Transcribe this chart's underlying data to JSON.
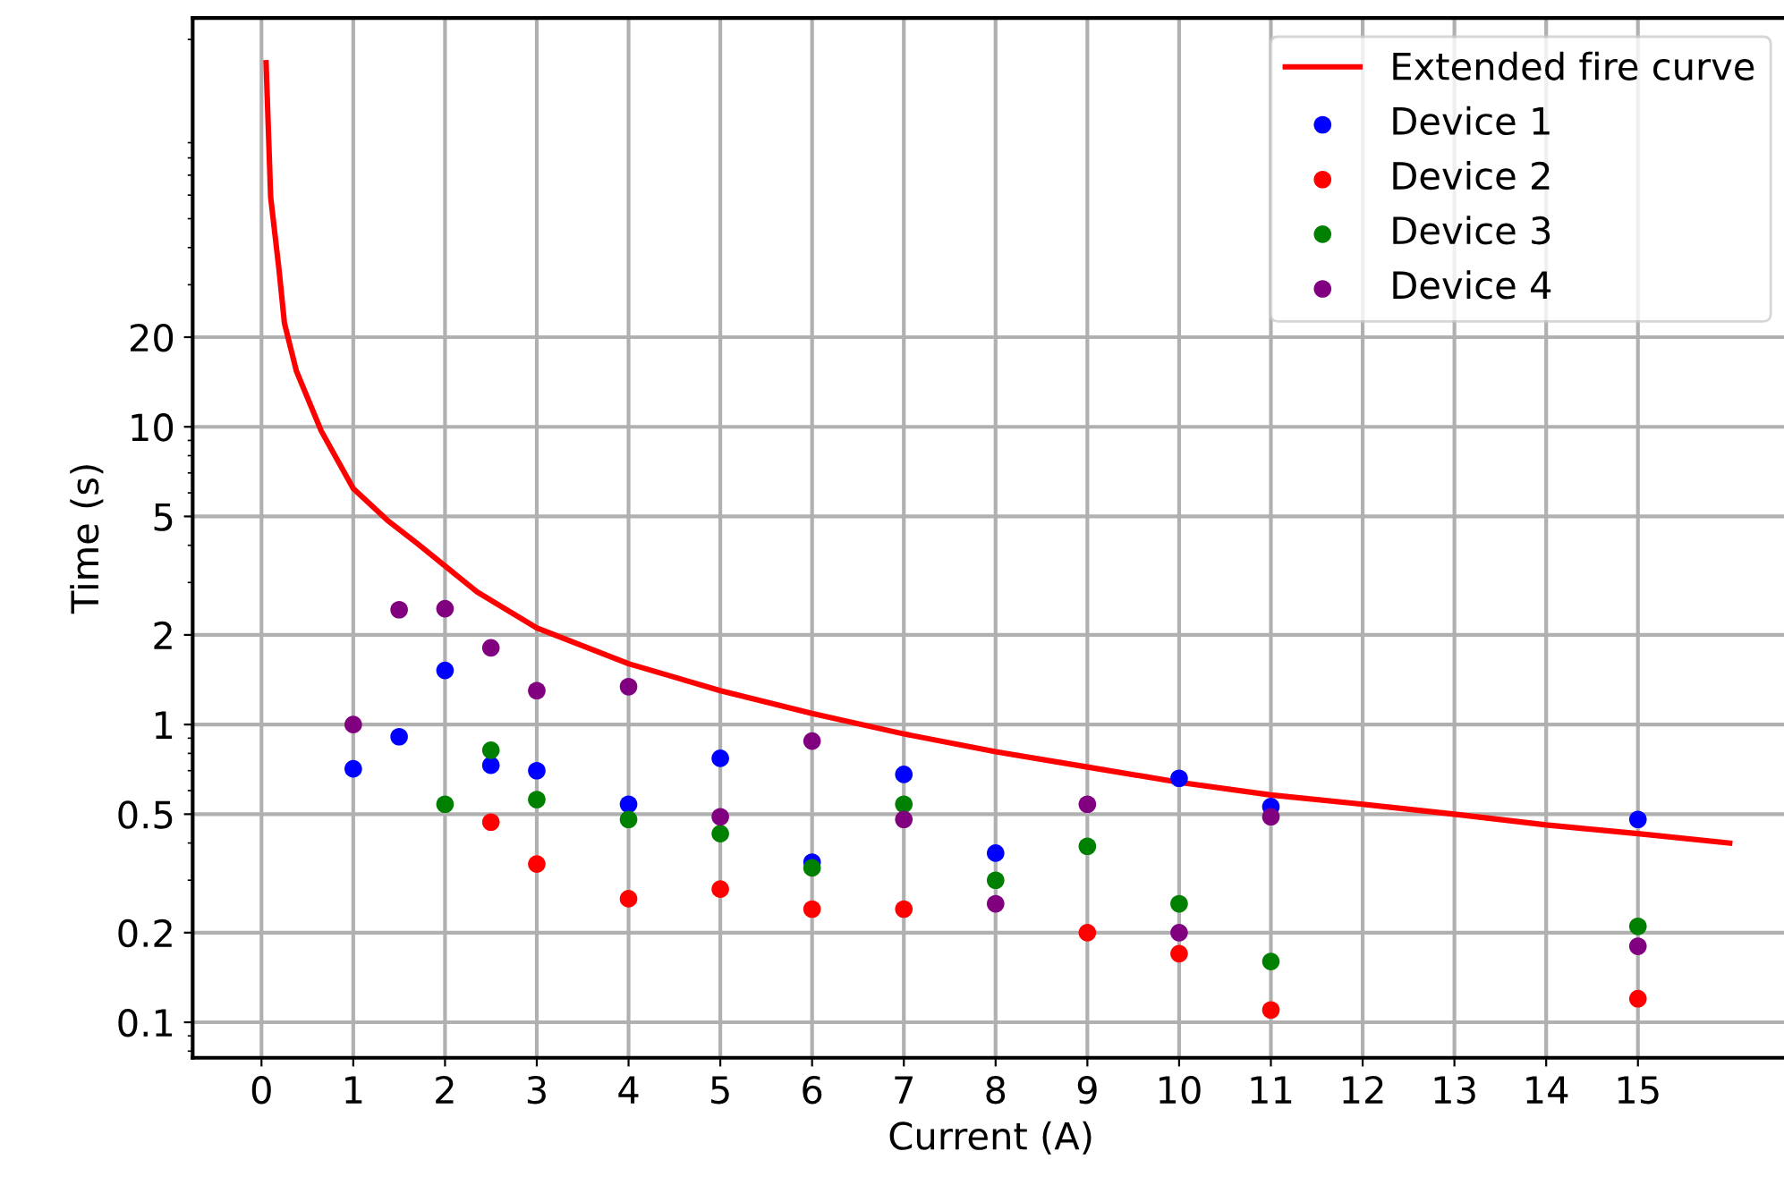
{
  "chart_data": {
    "type": "scatter",
    "xlabel": "Current (A)",
    "ylabel": "Time (s)",
    "log": "y",
    "xlim": [
      -0.75,
      16.65
    ],
    "xticks": [
      0,
      1,
      2,
      3,
      4,
      5,
      6,
      7,
      8,
      9,
      10,
      11,
      12,
      13,
      14,
      15
    ],
    "ylim": [
      0.076,
      236
    ],
    "yticks": [
      0.1,
      0.2,
      0.5,
      1,
      2,
      5,
      10,
      20
    ],
    "grid": true,
    "legend": "top right",
    "series": [
      {
        "name": "Extended fire curve",
        "type": "line",
        "color": "#ff0000",
        "marker": "none",
        "line_style": "solid",
        "x": [
          0.05,
          0.1,
          0.19,
          0.25,
          0.38,
          0.65,
          1,
          1.37,
          1.7,
          2.35,
          3,
          4,
          5,
          6,
          7,
          8,
          9,
          10,
          11,
          12,
          13,
          14,
          15,
          16
        ],
        "values": [
          167,
          59,
          33.9,
          22.3,
          15.4,
          9.7,
          6.2,
          4.86,
          4.05,
          2.79,
          2.11,
          1.6,
          1.3,
          1.09,
          0.93,
          0.81,
          0.72,
          0.64,
          0.58,
          0.54,
          0.5,
          0.46,
          0.43,
          0.4
        ]
      },
      {
        "name": "Device 1",
        "marker": "circle",
        "color": "#0000ff",
        "x": [
          1,
          1.5,
          2,
          2.5,
          3,
          4,
          5,
          6,
          7,
          8,
          10,
          11,
          15
        ],
        "values": [
          0.71,
          0.91,
          1.52,
          0.73,
          0.7,
          0.54,
          0.77,
          0.345,
          0.68,
          0.37,
          0.66,
          0.53,
          0.48
        ]
      },
      {
        "name": "Device 2",
        "marker": "circle",
        "color": "#ff0000",
        "x": [
          2.5,
          3,
          4,
          5,
          6,
          7,
          9,
          10,
          11,
          15
        ],
        "values": [
          0.47,
          0.34,
          0.26,
          0.28,
          0.24,
          0.24,
          0.2,
          0.17,
          0.11,
          0.12
        ]
      },
      {
        "name": "Device 3",
        "marker": "circle",
        "color": "#008000",
        "x": [
          2,
          2.5,
          3,
          4,
          5,
          6,
          7,
          8,
          9,
          10,
          11,
          15
        ],
        "values": [
          0.54,
          0.82,
          0.56,
          0.48,
          0.43,
          0.33,
          0.54,
          0.3,
          0.39,
          0.25,
          0.16,
          0.21
        ]
      },
      {
        "name": "Device 4",
        "marker": "circle",
        "color": "#800080",
        "x": [
          1,
          1.5,
          2,
          2.5,
          3,
          4,
          5,
          6,
          7,
          8,
          9,
          10,
          11,
          15
        ],
        "values": [
          1.0,
          2.43,
          2.45,
          1.81,
          1.3,
          1.34,
          0.49,
          0.88,
          0.48,
          0.25,
          0.54,
          0.2,
          0.49,
          0.18
        ]
      }
    ]
  }
}
